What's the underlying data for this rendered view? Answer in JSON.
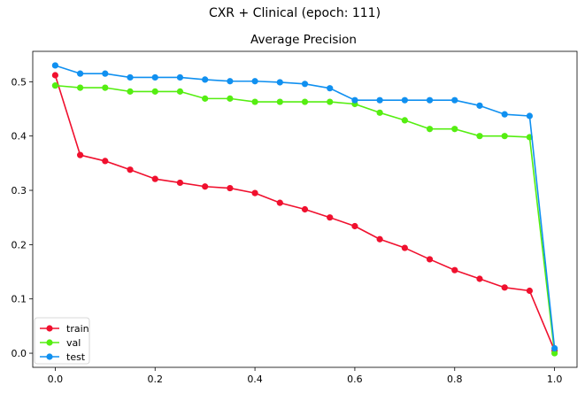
{
  "chart_data": {
    "type": "line",
    "suptitle": "CXR + Clinical (epoch: 111)",
    "title": "Average Precision",
    "xlabel": "",
    "ylabel": "",
    "xlim": [
      -0.045,
      1.045
    ],
    "ylim": [
      -0.026,
      0.556
    ],
    "xticks": [
      0.0,
      0.2,
      0.4,
      0.6,
      0.8,
      1.0
    ],
    "xtick_labels": [
      "0.0",
      "0.2",
      "0.4",
      "0.6",
      "0.8",
      "1.0"
    ],
    "yticks": [
      0.0,
      0.1,
      0.2,
      0.3,
      0.4,
      0.5
    ],
    "ytick_labels": [
      "0.0",
      "0.1",
      "0.2",
      "0.3",
      "0.4",
      "0.5"
    ],
    "grid": false,
    "legend_position": "lower-left",
    "x": [
      0.0,
      0.05,
      0.1,
      0.15,
      0.2,
      0.25,
      0.3,
      0.35,
      0.4,
      0.45,
      0.5,
      0.55,
      0.6,
      0.65,
      0.7,
      0.75,
      0.8,
      0.85,
      0.9,
      0.95,
      1.0
    ],
    "series": [
      {
        "name": "train",
        "color": "#f0102e",
        "values": [
          0.512,
          0.365,
          0.354,
          0.338,
          0.321,
          0.314,
          0.307,
          0.304,
          0.295,
          0.277,
          0.265,
          0.25,
          0.234,
          0.21,
          0.194,
          0.173,
          0.153,
          0.137,
          0.121,
          0.115,
          0.005
        ]
      },
      {
        "name": "val",
        "color": "#55ee11",
        "values": [
          0.493,
          0.489,
          0.489,
          0.482,
          0.482,
          0.482,
          0.469,
          0.469,
          0.463,
          0.463,
          0.463,
          0.463,
          0.459,
          0.443,
          0.429,
          0.413,
          0.413,
          0.4,
          0.4,
          0.398,
          0.0
        ]
      },
      {
        "name": "test",
        "color": "#1090f0",
        "values": [
          0.53,
          0.515,
          0.515,
          0.508,
          0.508,
          0.508,
          0.504,
          0.501,
          0.501,
          0.499,
          0.496,
          0.488,
          0.466,
          0.466,
          0.466,
          0.466,
          0.466,
          0.456,
          0.44,
          0.437,
          0.009
        ]
      }
    ]
  }
}
